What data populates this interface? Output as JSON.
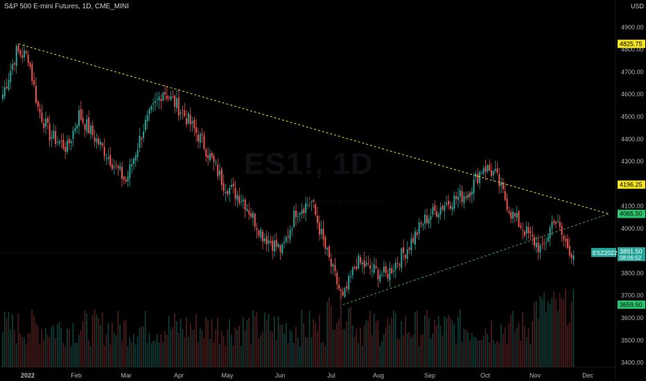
{
  "header": {
    "title": "S&P 500 E-mini Futures, 1D, CME_MINI",
    "currency": "USD"
  },
  "watermark": {
    "symbol": "ES1!, 1D",
    "sub": "S&P 500 E-mini Futures"
  },
  "colors": {
    "up": "#26a69a",
    "down": "#ef5350",
    "trend_upper": "#f0e020",
    "trend_lower": "#4caf50",
    "label_yellow": "#f5e51c",
    "label_green": "#28c76f",
    "current_blue": "#26a69a"
  },
  "chart_data": {
    "type": "candlestick",
    "ylim": [
      3380,
      4960
    ],
    "y_ticks": [
      3400,
      3500,
      3600,
      3700,
      3800,
      3900,
      4000,
      4100,
      4200,
      4300,
      4400,
      4500,
      4600,
      4700,
      4800,
      4900
    ],
    "x_ticks": [
      "2022",
      "Feb",
      "Mar",
      "Apr",
      "May",
      "Jun",
      "Jul",
      "Aug",
      "Sep",
      "Oct",
      "Nov",
      "Dec"
    ],
    "close_anchors": [
      [
        0,
        4600
      ],
      [
        7,
        4790
      ],
      [
        13,
        4770
      ],
      [
        18,
        4540
      ],
      [
        24,
        4420
      ],
      [
        33,
        4360
      ],
      [
        39,
        4510
      ],
      [
        46,
        4420
      ],
      [
        55,
        4310
      ],
      [
        63,
        4210
      ],
      [
        72,
        4450
      ],
      [
        82,
        4620
      ],
      [
        92,
        4520
      ],
      [
        102,
        4390
      ],
      [
        113,
        4200
      ],
      [
        123,
        4130
      ],
      [
        133,
        3970
      ],
      [
        143,
        3900
      ],
      [
        150,
        4080
      ],
      [
        158,
        4120
      ],
      [
        165,
        3910
      ],
      [
        174,
        3680
      ],
      [
        181,
        3850
      ],
      [
        188,
        3820
      ],
      [
        196,
        3790
      ],
      [
        206,
        3900
      ],
      [
        216,
        4040
      ],
      [
        226,
        4110
      ],
      [
        238,
        4160
      ],
      [
        246,
        4280
      ],
      [
        252,
        4240
      ],
      [
        260,
        4070
      ],
      [
        268,
        3980
      ],
      [
        276,
        3900
      ],
      [
        282,
        4050
      ],
      [
        287,
        3950
      ],
      [
        292,
        3880
      ]
    ],
    "price_labels": [
      {
        "value": 4825.75,
        "text": "4825.75",
        "color": "yellow"
      },
      {
        "value": 4196.25,
        "text": "4196.25",
        "color": "yellow"
      },
      {
        "value": 4065.5,
        "text": "4065.50",
        "color": "green"
      },
      {
        "value": 3659.5,
        "text": "3659.50",
        "color": "green"
      }
    ],
    "current": {
      "symbol": "ESZ2022",
      "price": "3891.50",
      "price_value": 3891.5,
      "countdown": "08:06:52"
    },
    "trendlines": [
      {
        "name": "upper-resistance",
        "from": [
          8,
          4825.75
        ],
        "to": [
          310,
          4065.5
        ],
        "color": "yellow"
      },
      {
        "name": "lower-support",
        "from": [
          174,
          3659.5
        ],
        "to": [
          310,
          4065.5
        ],
        "color": "green"
      }
    ]
  }
}
